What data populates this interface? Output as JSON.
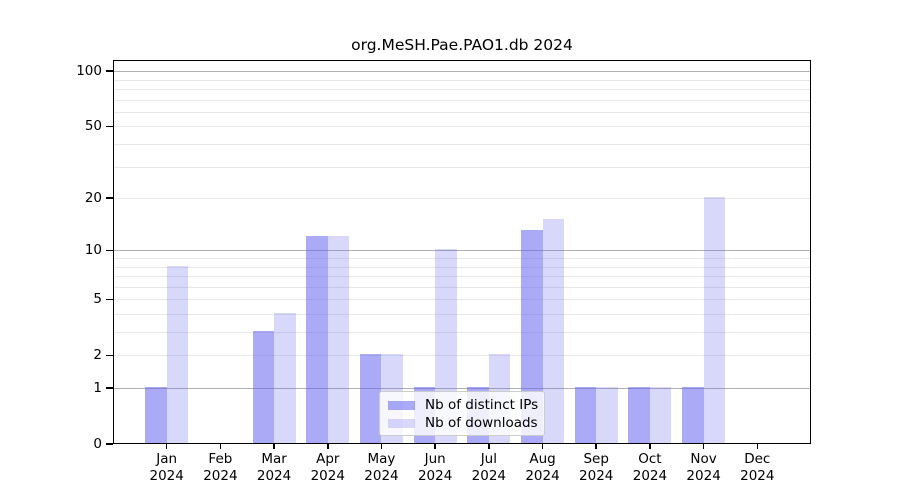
{
  "title": "org.MeSH.Pae.PAO1.db 2024",
  "chart_data": {
    "type": "bar",
    "title": "org.MeSH.Pae.PAO1.db 2024",
    "x_months": [
      "Jan",
      "Feb",
      "Mar",
      "Apr",
      "May",
      "Jun",
      "Jul",
      "Aug",
      "Sep",
      "Oct",
      "Nov",
      "Dec"
    ],
    "x_year": "2024",
    "series": [
      {
        "name": "Nb of distinct IPs",
        "color": "rgba(100,100,238,0.55)",
        "values": [
          1,
          0,
          3,
          12,
          2,
          1,
          1,
          13,
          1,
          1,
          1,
          0
        ]
      },
      {
        "name": "Nb of downloads",
        "color": "rgba(100,100,238,0.25)",
        "values": [
          8,
          0,
          4,
          12,
          2,
          10,
          2,
          15,
          1,
          1,
          20,
          0
        ]
      }
    ],
    "y_scale": "log10(1+v)",
    "y_tick_labels": [
      0,
      1,
      2,
      5,
      10,
      20,
      50,
      100
    ],
    "y_grid_major": [
      1,
      10,
      100
    ],
    "y_grid_minor": [
      2,
      3,
      4,
      5,
      6,
      7,
      8,
      9,
      20,
      30,
      40,
      50,
      60,
      70,
      80,
      90
    ],
    "y_max": 115,
    "legend_position": "lower center",
    "colors": {
      "grid_major": "#b0b0b0",
      "grid_minor": "#e8e8e8",
      "spine": "#000000",
      "text": "#000000"
    }
  }
}
